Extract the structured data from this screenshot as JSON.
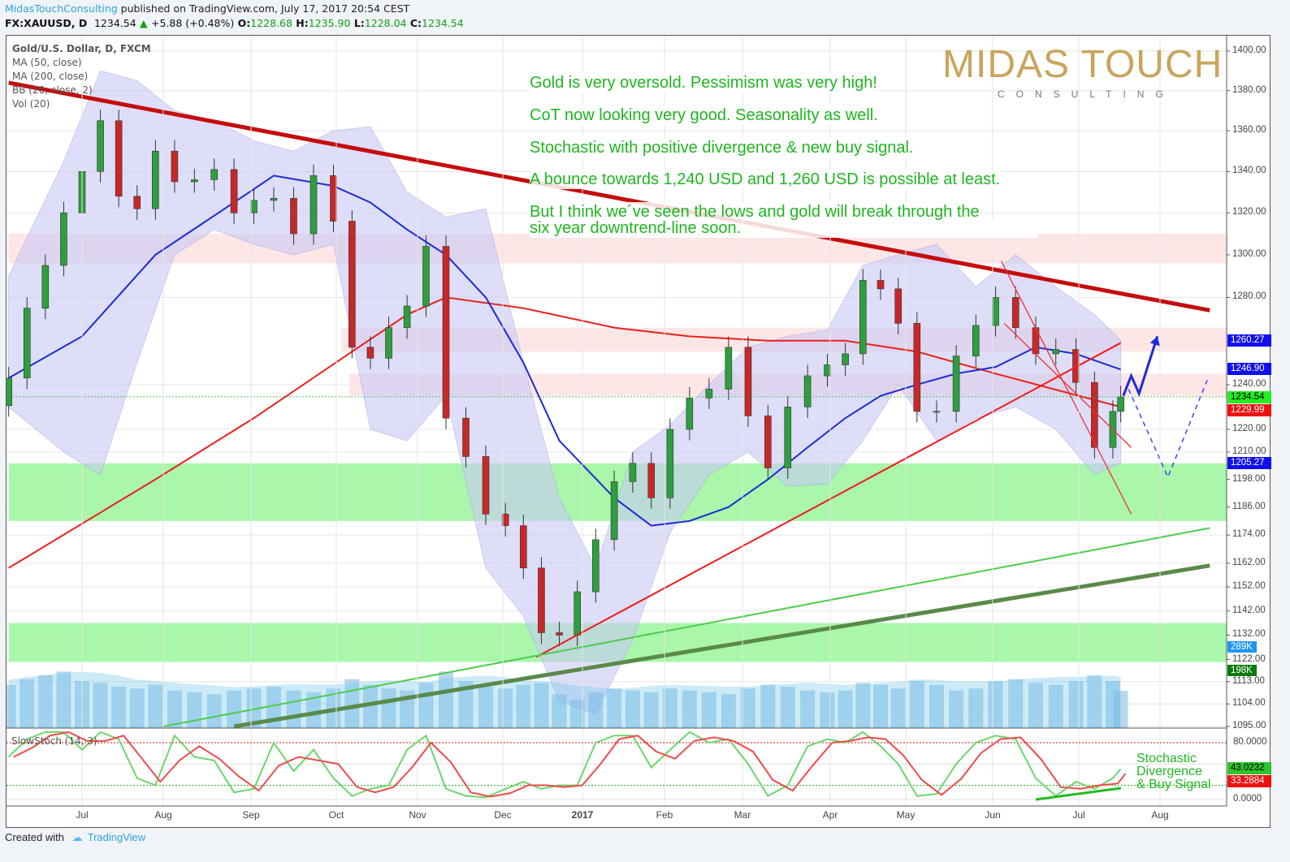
{
  "header": {
    "publisher": "MidasTouchConsulting",
    "published_text": "published on TradingView.com, July 17, 2017 20:54 CEST",
    "symbol": "FX:XAUUSD, D",
    "last": "1234.54",
    "change": "+5.88 (+0.48%)",
    "o_label": "O:",
    "o": "1228.68",
    "h_label": "H:",
    "h": "1235.90",
    "l_label": "L:",
    "l": "1228.04",
    "c_label": "C:",
    "c": "1234.54",
    "up_icon": "triangle-up-icon"
  },
  "legend": {
    "title": "Gold/U.S. Dollar, D, FXCM",
    "ma50": "MA (50, close)",
    "ma200": "MA (200, close)",
    "bb": "BB (20, close, 2)",
    "vol": "Vol (20)"
  },
  "notes": [
    "Gold is very oversold. Pessimism was very high!",
    "CoT now looking very good. Seasonality as well.",
    "Stochastic with positive divergence & new buy signal.",
    "A bounce towards 1,240 USD and 1,260 USD is possible at least.",
    "But I think we´ve seen the lows and gold will break through the",
    "six year downtrend-line soon."
  ],
  "logo": {
    "word1": "MIDAS",
    "word2": "TOUCH",
    "sub": "CONSULTING",
    "color": "#c9a55b"
  },
  "stoch": {
    "label": "SlowStoch (14, 3)",
    "ticks": [
      "80.0000",
      "0.0000"
    ],
    "k_badge": "43.0232",
    "d_badge": "33.2884",
    "note": [
      "Stochastic",
      "Divergence",
      "& Buy Signal"
    ]
  },
  "badges": {
    "bb_upper": "1260.27",
    "ma50": "1246.90",
    "last": "1234.54",
    "ma200": "1229.99",
    "bb_lower": "1205.27",
    "vol_ma": "289K",
    "vol": "198K"
  },
  "footer": {
    "created": "Created with",
    "brand": "TradingView",
    "logo_icon": "tradingview-cloud-icon"
  },
  "colors": {
    "up": "#2e9e3e",
    "down": "#c62828",
    "ma50": "#1a2bd6",
    "ma200": "#e8221b",
    "bb_fill": "#c9c9f5",
    "text_green": "#1fb51f",
    "resistance_zone": "#fde3e3",
    "support_zone": "#a5f5a5"
  },
  "chart_data": {
    "type": "candlestick",
    "scale": "log",
    "ylim": [
      1095,
      1400
    ],
    "y_ticks": [
      "1400.00",
      "1380.00",
      "1360.00",
      "1340.00",
      "1320.00",
      "1300.00",
      "1280.00",
      "1240.00",
      "1220.00",
      "1210.00",
      "1198.00",
      "1186.00",
      "1174.00",
      "1162.00",
      "1152.00",
      "1142.00",
      "1132.00",
      "1122.00",
      "1113.00",
      "1104.00",
      "1095.00"
    ],
    "x_ticks": [
      "Jul",
      "Aug",
      "Sep",
      "Oct",
      "Nov",
      "Dec",
      "2017",
      "Feb",
      "Mar",
      "Apr",
      "May",
      "Jun",
      "Jul",
      "Aug"
    ],
    "grid": true,
    "closes": [
      [
        "2016-06-03",
        1243
      ],
      [
        "2016-06-10",
        1275
      ],
      [
        "2016-06-17",
        1295
      ],
      [
        "2016-06-24",
        1320
      ],
      [
        "2016-07-01",
        1340
      ],
      [
        "2016-07-08",
        1365
      ],
      [
        "2016-07-15",
        1328
      ],
      [
        "2016-07-22",
        1322
      ],
      [
        "2016-07-29",
        1350
      ],
      [
        "2016-08-05",
        1335
      ],
      [
        "2016-08-12",
        1336
      ],
      [
        "2016-08-19",
        1341
      ],
      [
        "2016-08-26",
        1320
      ],
      [
        "2016-09-02",
        1326
      ],
      [
        "2016-09-09",
        1327
      ],
      [
        "2016-09-16",
        1310
      ],
      [
        "2016-09-23",
        1338
      ],
      [
        "2016-09-30",
        1316
      ],
      [
        "2016-10-07",
        1257
      ],
      [
        "2016-10-14",
        1252
      ],
      [
        "2016-10-21",
        1266
      ],
      [
        "2016-10-28",
        1276
      ],
      [
        "2016-11-04",
        1304
      ],
      [
        "2016-11-11",
        1225
      ],
      [
        "2016-11-18",
        1208
      ],
      [
        "2016-11-25",
        1183
      ],
      [
        "2016-12-02",
        1178
      ],
      [
        "2016-12-09",
        1160
      ],
      [
        "2016-12-16",
        1133
      ],
      [
        "2016-12-23",
        1132
      ],
      [
        "2016-12-30",
        1150
      ],
      [
        "2017-01-06",
        1172
      ],
      [
        "2017-01-13",
        1197
      ],
      [
        "2017-01-20",
        1205
      ],
      [
        "2017-01-27",
        1190
      ],
      [
        "2017-02-03",
        1220
      ],
      [
        "2017-02-10",
        1234
      ],
      [
        "2017-02-17",
        1238
      ],
      [
        "2017-02-24",
        1257
      ],
      [
        "2017-03-03",
        1226
      ],
      [
        "2017-03-10",
        1203
      ],
      [
        "2017-03-17",
        1230
      ],
      [
        "2017-03-24",
        1244
      ],
      [
        "2017-03-31",
        1249
      ],
      [
        "2017-04-07",
        1254
      ],
      [
        "2017-04-14",
        1288
      ],
      [
        "2017-04-21",
        1284
      ],
      [
        "2017-04-28",
        1268
      ],
      [
        "2017-05-05",
        1228
      ],
      [
        "2017-05-12",
        1228
      ],
      [
        "2017-05-19",
        1253
      ],
      [
        "2017-05-26",
        1267
      ],
      [
        "2017-06-02",
        1280
      ],
      [
        "2017-06-09",
        1266
      ],
      [
        "2017-06-16",
        1254
      ],
      [
        "2017-06-23",
        1256
      ],
      [
        "2017-06-30",
        1241
      ],
      [
        "2017-07-07",
        1212
      ],
      [
        "2017-07-14",
        1228
      ],
      [
        "2017-07-17",
        1234.54
      ]
    ],
    "volume_k": [
      230,
      260,
      280,
      300,
      250,
      240,
      220,
      210,
      230,
      200,
      190,
      180,
      200,
      210,
      220,
      200,
      190,
      210,
      260,
      230,
      210,
      200,
      240,
      300,
      250,
      220,
      210,
      230,
      240,
      180,
      150,
      190,
      210,
      200,
      190,
      210,
      200,
      190,
      180,
      210,
      230,
      220,
      200,
      190,
      200,
      240,
      230,
      210,
      250,
      230,
      200,
      210,
      250,
      260,
      240,
      230,
      250,
      280,
      250,
      198
    ],
    "stoch_k": [
      60,
      85,
      95,
      95,
      70,
      95,
      85,
      30,
      20,
      90,
      60,
      55,
      10,
      15,
      80,
      40,
      70,
      30,
      5,
      15,
      20,
      70,
      90,
      15,
      5,
      3,
      15,
      25,
      15,
      20,
      20,
      80,
      90,
      90,
      45,
      70,
      95,
      80,
      85,
      50,
      5,
      20,
      75,
      85,
      80,
      95,
      75,
      50,
      5,
      8,
      50,
      80,
      90,
      85,
      30,
      5,
      25,
      15,
      30,
      43
    ],
    "ma50": [
      [
        "2016-06-03",
        1243
      ],
      [
        "2016-07-01",
        1262
      ],
      [
        "2016-07-29",
        1300
      ],
      [
        "2016-08-26",
        1325
      ],
      [
        "2016-09-09",
        1338
      ],
      [
        "2016-09-30",
        1333
      ],
      [
        "2016-10-14",
        1325
      ],
      [
        "2016-10-28",
        1312
      ],
      [
        "2016-11-11",
        1300
      ],
      [
        "2016-11-25",
        1280
      ],
      [
        "2016-12-09",
        1250
      ],
      [
        "2016-12-23",
        1215
      ],
      [
        "2017-01-13",
        1190
      ],
      [
        "2017-01-27",
        1178
      ],
      [
        "2017-02-10",
        1180
      ],
      [
        "2017-02-24",
        1186
      ],
      [
        "2017-03-10",
        1198
      ],
      [
        "2017-03-24",
        1212
      ],
      [
        "2017-04-07",
        1225
      ],
      [
        "2017-04-21",
        1235
      ],
      [
        "2017-05-05",
        1240
      ],
      [
        "2017-05-19",
        1245
      ],
      [
        "2017-06-02",
        1248
      ],
      [
        "2017-06-16",
        1257
      ],
      [
        "2017-06-30",
        1254
      ],
      [
        "2017-07-17",
        1246.9
      ]
    ],
    "ma200": [
      [
        "2016-06-03",
        1160
      ],
      [
        "2016-07-29",
        1198
      ],
      [
        "2016-09-02",
        1225
      ],
      [
        "2016-10-07",
        1255
      ],
      [
        "2016-10-28",
        1272
      ],
      [
        "2016-11-11",
        1280
      ],
      [
        "2016-12-09",
        1275
      ],
      [
        "2017-01-13",
        1266
      ],
      [
        "2017-02-10",
        1262
      ],
      [
        "2017-03-10",
        1260
      ],
      [
        "2017-04-07",
        1260
      ],
      [
        "2017-05-05",
        1255
      ],
      [
        "2017-06-02",
        1245
      ],
      [
        "2017-07-17",
        1229.99
      ]
    ],
    "bb_upper": [
      [
        "2016-06-03",
        1290
      ],
      [
        "2016-06-24",
        1345
      ],
      [
        "2016-07-08",
        1390
      ],
      [
        "2016-07-22",
        1385
      ],
      [
        "2016-08-05",
        1370
      ],
      [
        "2016-08-19",
        1365
      ],
      [
        "2016-09-02",
        1355
      ],
      [
        "2016-09-16",
        1350
      ],
      [
        "2016-09-30",
        1360
      ],
      [
        "2016-10-14",
        1362
      ],
      [
        "2016-10-28",
        1330
      ],
      [
        "2016-11-11",
        1318
      ],
      [
        "2016-11-25",
        1322
      ],
      [
        "2016-12-09",
        1250
      ],
      [
        "2016-12-23",
        1190
      ],
      [
        "2017-01-06",
        1160
      ],
      [
        "2017-01-20",
        1210
      ],
      [
        "2017-02-03",
        1222
      ],
      [
        "2017-02-17",
        1240
      ],
      [
        "2017-03-03",
        1257
      ],
      [
        "2017-03-17",
        1262
      ],
      [
        "2017-03-31",
        1265
      ],
      [
        "2017-04-14",
        1295
      ],
      [
        "2017-04-28",
        1300
      ],
      [
        "2017-05-12",
        1305
      ],
      [
        "2017-05-26",
        1285
      ],
      [
        "2017-06-09",
        1300
      ],
      [
        "2017-06-23",
        1285
      ],
      [
        "2017-07-07",
        1272
      ],
      [
        "2017-07-17",
        1260.27
      ]
    ],
    "bb_lower": [
      [
        "2016-06-03",
        1230
      ],
      [
        "2016-06-24",
        1210
      ],
      [
        "2016-07-08",
        1200
      ],
      [
        "2016-07-22",
        1250
      ],
      [
        "2016-08-05",
        1300
      ],
      [
        "2016-08-19",
        1312
      ],
      [
        "2016-09-02",
        1305
      ],
      [
        "2016-09-16",
        1300
      ],
      [
        "2016-09-30",
        1305
      ],
      [
        "2016-10-14",
        1220
      ],
      [
        "2016-10-28",
        1215
      ],
      [
        "2016-11-11",
        1235
      ],
      [
        "2016-11-25",
        1160
      ],
      [
        "2016-12-09",
        1140
      ],
      [
        "2016-12-23",
        1105
      ],
      [
        "2017-01-06",
        1100
      ],
      [
        "2017-01-20",
        1130
      ],
      [
        "2017-02-03",
        1175
      ],
      [
        "2017-02-17",
        1200
      ],
      [
        "2017-03-03",
        1210
      ],
      [
        "2017-03-17",
        1195
      ],
      [
        "2017-03-31",
        1196
      ],
      [
        "2017-04-14",
        1215
      ],
      [
        "2017-04-28",
        1240
      ],
      [
        "2017-05-12",
        1215
      ],
      [
        "2017-05-26",
        1225
      ],
      [
        "2017-06-09",
        1230
      ],
      [
        "2017-06-23",
        1220
      ],
      [
        "2017-07-07",
        1200
      ],
      [
        "2017-07-17",
        1205.27
      ]
    ],
    "zones": [
      {
        "kind": "resistance",
        "from": "2016-06-03",
        "low": 1296,
        "high": 1310
      },
      {
        "kind": "resistance",
        "from": "2016-10-03",
        "low": 1255,
        "high": 1266
      },
      {
        "kind": "resistance",
        "from": "2016-10-06",
        "low": 1235,
        "high": 1245
      },
      {
        "kind": "support",
        "from": "2016-06-03",
        "low": 1180,
        "high": 1205
      },
      {
        "kind": "support",
        "from": "2016-06-03",
        "low": 1121,
        "high": 1137
      }
    ],
    "trendlines": [
      {
        "kind": "six-year-downtrend",
        "p1": [
          "2016-06-03",
          1384
        ],
        "p2": [
          "2017-08-20",
          1274
        ]
      },
      {
        "kind": "uptrend",
        "p1": [
          "2016-12-14",
          1123
        ],
        "p2": [
          "2017-07-17",
          1259
        ]
      },
      {
        "kind": "support-thin",
        "p1": [
          "2016-08-01",
          1095
        ],
        "p2": [
          "2017-08-20",
          1177
        ]
      },
      {
        "kind": "support-thick",
        "p1": [
          "2016-08-26",
          1095
        ],
        "p2": [
          "2017-08-20",
          1161
        ]
      },
      {
        "kind": "channel",
        "p1": [
          "2017-06-04",
          1297
        ],
        "p2": [
          "2017-07-21",
          1183
        ]
      },
      {
        "kind": "channel",
        "p1": [
          "2017-06-05",
          1268
        ],
        "p2": [
          "2017-07-21",
          1212
        ]
      }
    ],
    "projection": {
      "solid": [
        [
          "2017-07-18",
          1235
        ],
        [
          "2017-07-21",
          1244
        ],
        [
          "2017-07-24",
          1236
        ],
        [
          "2017-07-31",
          1262
        ]
      ],
      "dashed": [
        [
          "2017-07-20",
          1238
        ],
        [
          "2017-08-04",
          1199
        ],
        [
          "2017-08-19",
          1242
        ]
      ]
    }
  }
}
